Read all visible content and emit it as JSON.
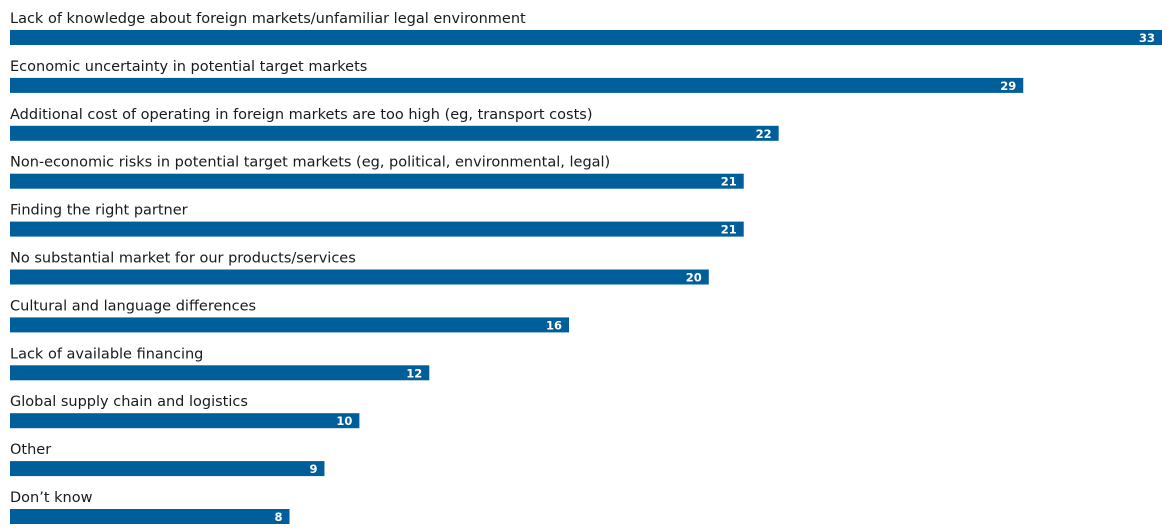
{
  "colors": {
    "bar": "#005f9b",
    "label_text": "#1a1a1a",
    "value_text": "#ffffff",
    "background": "#ffffff"
  },
  "chart_data": {
    "type": "bar",
    "orientation": "horizontal",
    "title": "",
    "xlabel": "",
    "ylabel": "",
    "xlim": [
      0,
      33
    ],
    "grid": false,
    "legend": "none",
    "categories": [
      "Lack of knowledge about foreign markets/unfamiliar legal environment",
      "Economic uncertainty in potential target markets",
      "Additional cost of operating in foreign markets are too high (eg, transport costs)",
      "Non-economic risks in potential target markets (eg, political, environmental, legal)",
      "Finding the right partner",
      "No substantial market for our products/services",
      "Cultural and language differences",
      "Lack of available financing",
      "Global supply chain and logistics",
      "Other",
      "Don’t know"
    ],
    "values": [
      33,
      29,
      22,
      21,
      21,
      20,
      16,
      12,
      10,
      9,
      8
    ]
  }
}
